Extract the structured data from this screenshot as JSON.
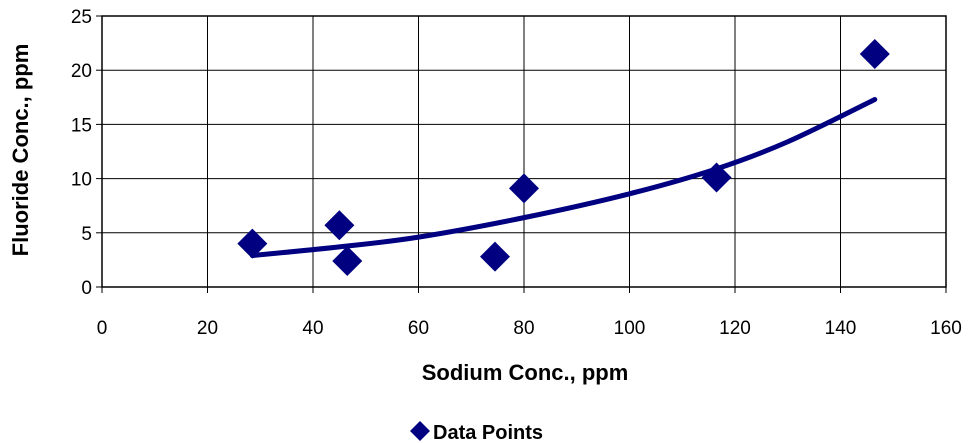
{
  "chart_data": {
    "type": "scatter",
    "xlabel": "Sodium Conc., ppm",
    "ylabel": "Fluoride Conc., ppm",
    "xlim": [
      0,
      160
    ],
    "ylim": [
      0,
      25
    ],
    "x_ticks": [
      "0",
      "20",
      "40",
      "60",
      "80",
      "100",
      "120",
      "140",
      "160"
    ],
    "y_ticks": [
      "0",
      "5",
      "10",
      "15",
      "20",
      "25"
    ],
    "grid": true,
    "legend_position": "bottom",
    "series": [
      {
        "name": "Data Points",
        "marker": "diamond",
        "color": "#000080",
        "points": [
          {
            "x": 28.5,
            "y": 4.0
          },
          {
            "x": 45.0,
            "y": 5.7
          },
          {
            "x": 46.5,
            "y": 2.4
          },
          {
            "x": 74.5,
            "y": 2.8
          },
          {
            "x": 80.0,
            "y": 9.1
          },
          {
            "x": 116.5,
            "y": 10.1
          },
          {
            "x": 146.5,
            "y": 21.5
          }
        ]
      }
    ],
    "trendline": {
      "type": "exponential",
      "color": "#000080",
      "x_range": [
        28.5,
        146.5
      ],
      "points": [
        {
          "x": 28.5,
          "y": 2.9
        },
        {
          "x": 45,
          "y": 3.7
        },
        {
          "x": 60,
          "y": 4.6
        },
        {
          "x": 80,
          "y": 6.4
        },
        {
          "x": 100,
          "y": 8.6
        },
        {
          "x": 116.5,
          "y": 10.9
        },
        {
          "x": 130,
          "y": 13.4
        },
        {
          "x": 146.5,
          "y": 17.3
        }
      ]
    }
  }
}
